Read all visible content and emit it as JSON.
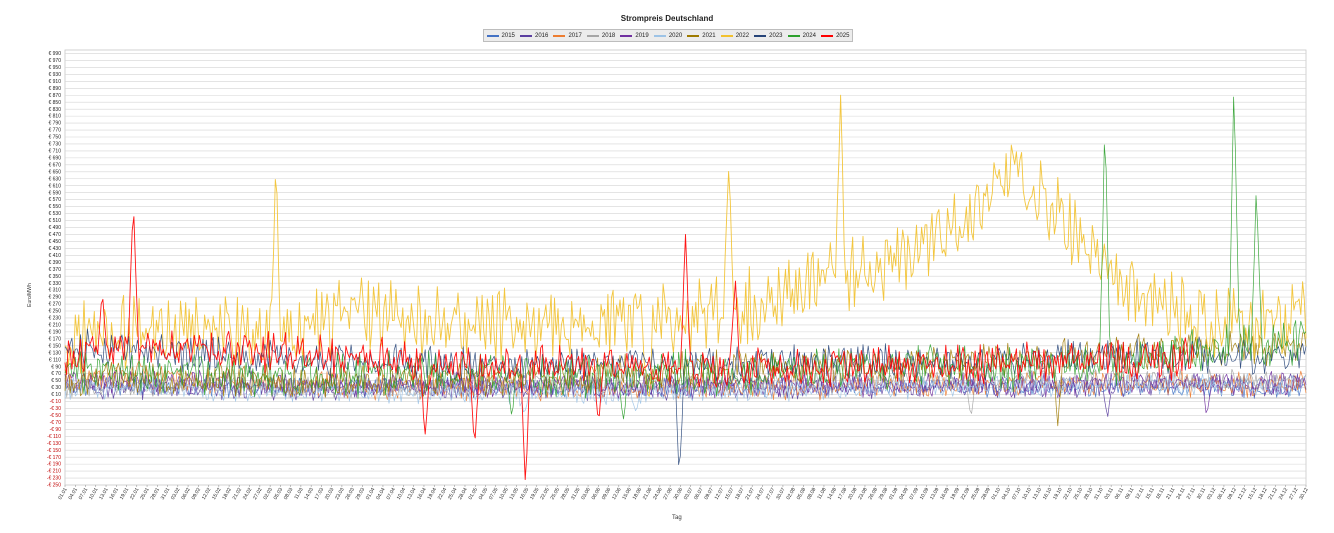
{
  "chart_data": {
    "type": "line",
    "title": "Strompreis Deutschland",
    "xlabel": "Tag",
    "ylabel": "Euro/MWh",
    "ylim": [
      -250,
      1000
    ],
    "y_tick_step": 20,
    "y_negative_color": "#c00000",
    "grid": true,
    "legend_position": "top",
    "x_tick_labels": [
      "01.01",
      "04.01",
      "07.01",
      "10.01",
      "13.01",
      "16.01",
      "19.01",
      "22.01",
      "25.01",
      "28.01",
      "31.01",
      "03.02",
      "06.02",
      "09.02",
      "12.02",
      "15.02",
      "18.02",
      "21.02",
      "24.02",
      "27.02",
      "02.03",
      "05.03",
      "08.03",
      "11.03",
      "14.03",
      "17.03",
      "20.03",
      "23.03",
      "26.03",
      "29.03",
      "01.04",
      "04.04",
      "07.04",
      "10.04",
      "13.04",
      "16.04",
      "19.04",
      "22.04",
      "25.04",
      "28.04",
      "01.05",
      "04.05",
      "07.05",
      "10.05",
      "13.05",
      "16.05",
      "19.05",
      "22.05",
      "25.05",
      "28.05",
      "31.05",
      "03.06",
      "06.06",
      "09.06",
      "12.06",
      "15.06",
      "18.06",
      "21.06",
      "24.06",
      "27.06",
      "30.06",
      "03.07",
      "06.07",
      "09.07",
      "12.07",
      "15.07",
      "18.07",
      "21.07",
      "24.07",
      "27.07",
      "30.07",
      "02.08",
      "05.08",
      "08.08",
      "11.08",
      "14.08",
      "17.08",
      "20.08",
      "23.08",
      "26.08",
      "29.08",
      "01.09",
      "04.09",
      "07.09",
      "10.09",
      "13.09",
      "16.09",
      "19.09",
      "22.09",
      "25.09",
      "28.09",
      "01.10",
      "04.10",
      "07.10",
      "10.10",
      "13.10",
      "16.10",
      "19.10",
      "22.10",
      "25.10",
      "28.10",
      "31.10",
      "03.11",
      "06.11",
      "09.11",
      "12.11",
      "15.11",
      "18.11",
      "21.11",
      "24.11",
      "27.11",
      "30.11",
      "03.12",
      "06.12",
      "09.12",
      "12.12",
      "15.12",
      "18.12",
      "21.12",
      "24.12",
      "27.12",
      "30.12"
    ],
    "series": [
      {
        "name": "2015",
        "color": "#4472c4",
        "base": [
          32,
          35,
          30,
          28,
          33,
          31,
          30,
          29,
          34,
          32,
          30,
          31,
          28,
          26
        ],
        "amp": 22,
        "spikes": []
      },
      {
        "name": "2016",
        "color": "#5b3fa0",
        "base": [
          28,
          30,
          26,
          24,
          27,
          25,
          26,
          28,
          30,
          31,
          33,
          35,
          37,
          38
        ],
        "amp": 25,
        "spikes": [
          [
            0.84,
            -60
          ]
        ]
      },
      {
        "name": "2017",
        "color": "#ed7d31",
        "base": [
          50,
          60,
          45,
          35,
          32,
          30,
          32,
          30,
          35,
          38,
          40,
          45,
          42,
          40
        ],
        "amp": 30,
        "spikes": [
          [
            0.06,
            110
          ]
        ]
      },
      {
        "name": "2018",
        "color": "#a5a5a5",
        "base": [
          35,
          32,
          38,
          34,
          36,
          40,
          42,
          48,
          55,
          60,
          58,
          55,
          54,
          50
        ],
        "amp": 25,
        "spikes": [
          [
            0.73,
            -60
          ]
        ]
      },
      {
        "name": "2019",
        "color": "#7030a0",
        "base": [
          50,
          48,
          40,
          38,
          36,
          35,
          34,
          36,
          38,
          37,
          36,
          40,
          42,
          38
        ],
        "amp": 28,
        "spikes": [
          [
            0.92,
            -50
          ]
        ]
      },
      {
        "name": "2020",
        "color": "#9dc3e6",
        "base": [
          30,
          25,
          20,
          18,
          15,
          14,
          16,
          18,
          25,
          30,
          32,
          35,
          40,
          38
        ],
        "amp": 25,
        "spikes": [
          [
            0.37,
            -50
          ],
          [
            0.46,
            -40
          ]
        ]
      },
      {
        "name": "2021",
        "color": "#9e7a00",
        "base": [
          55,
          50,
          48,
          52,
          55,
          60,
          75,
          85,
          90,
          95,
          110,
          130,
          140,
          150
        ],
        "amp": 40,
        "spikes": [
          [
            0.8,
            -80
          ]
        ]
      },
      {
        "name": "2022",
        "color": "#f2c12e",
        "base": [
          180,
          200,
          180,
          240,
          220,
          200,
          230,
          250,
          340,
          420,
          640,
          350,
          220,
          230
        ],
        "amp": 85,
        "spikes": [
          [
            0.17,
            700
          ],
          [
            0.535,
            680
          ],
          [
            0.625,
            870
          ],
          [
            0.47,
            -40
          ]
        ]
      },
      {
        "name": "2023",
        "color": "#264478",
        "base": [
          150,
          130,
          120,
          110,
          100,
          95,
          100,
          100,
          110,
          100,
          110,
          120,
          120,
          110
        ],
        "amp": 40,
        "spikes": [
          [
            0.495,
            -240
          ]
        ]
      },
      {
        "name": "2024",
        "color": "#2ca02c",
        "base": [
          80,
          70,
          60,
          65,
          70,
          60,
          70,
          75,
          80,
          90,
          85,
          95,
          150,
          160
        ],
        "amp": 50,
        "spikes": [
          [
            0.838,
            820
          ],
          [
            0.942,
            930
          ],
          [
            0.96,
            610
          ],
          [
            0.36,
            -50
          ],
          [
            0.45,
            -60
          ]
        ]
      },
      {
        "name": "2025",
        "color": "#ff0000",
        "base": [
          120,
          140,
          130,
          120,
          100,
          95,
          90,
          85,
          90,
          95,
          105,
          110,
          115,
          120
        ],
        "amp": 45,
        "spikes": [
          [
            0.055,
            580
          ],
          [
            0.5,
            470
          ],
          [
            0.54,
            350
          ],
          [
            0.03,
            310
          ],
          [
            0.371,
            -250
          ],
          [
            0.29,
            -120
          ],
          [
            0.33,
            -150
          ],
          [
            0.43,
            -80
          ]
        ],
        "end": 0.91
      }
    ]
  }
}
